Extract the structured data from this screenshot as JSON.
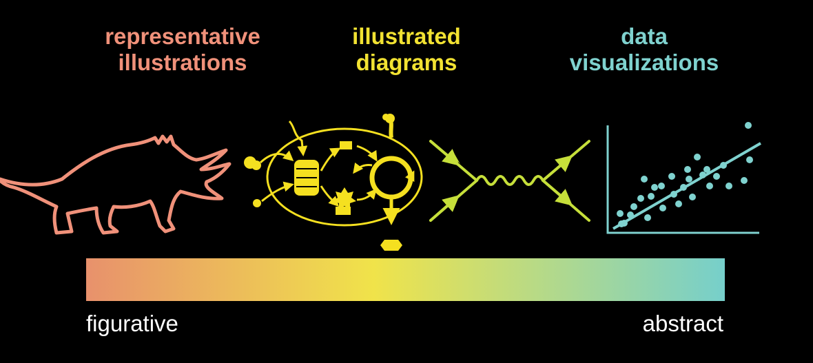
{
  "titles": {
    "representative": {
      "line1": "representative",
      "line2": "illustrations"
    },
    "illustrated": {
      "line1": "illustrated",
      "line2": "diagrams"
    },
    "data": {
      "line1": "data",
      "line2": "visualizations"
    }
  },
  "scale": {
    "left_label": "figurative",
    "right_label": "abstract"
  },
  "colors": {
    "representative": "#f0917a",
    "illustrated": "#f2e232",
    "diagram_stroke": "#f5e020",
    "feynman": "#c6df3a",
    "data": "#7fd2cf",
    "gradient_start": "#e8916c",
    "gradient_mid": "#f0e34a",
    "gradient_end": "#76cfcb",
    "label_text": "#ffffff",
    "background": "#000000"
  },
  "icons": {
    "representative": "triceratops-outline-icon",
    "illustrated": "biological-pathway-diagram-icon",
    "feynman": "feynman-diagram-icon",
    "data": "scatter-plot-with-trendline-icon"
  }
}
